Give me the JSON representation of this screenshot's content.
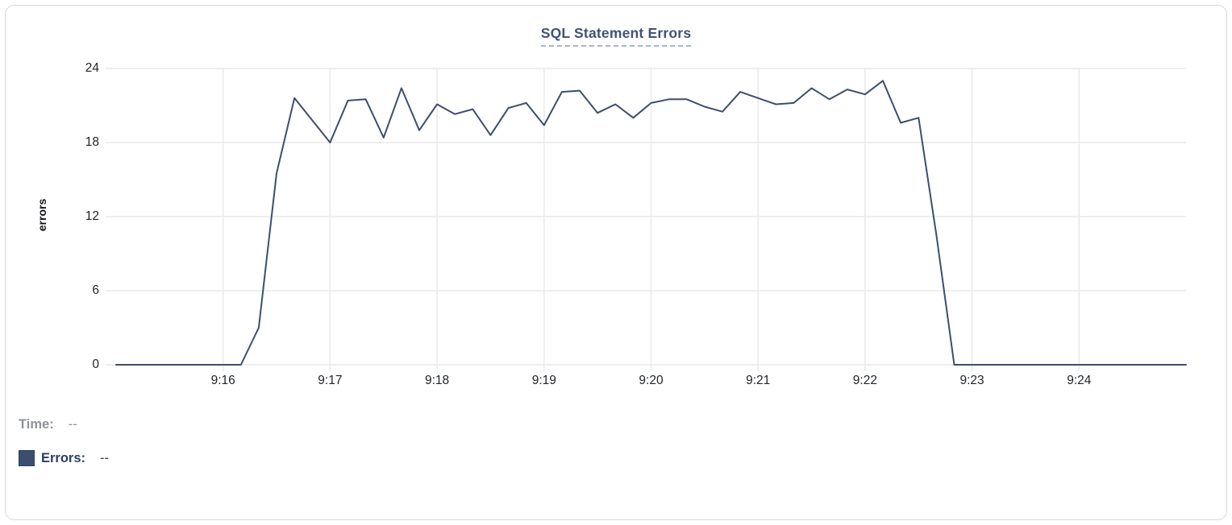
{
  "card": {
    "title": "SQL Statement Errors"
  },
  "chart_data": {
    "type": "line",
    "title": "SQL Statement Errors",
    "xlabel": "",
    "ylabel": "errors",
    "ylim": [
      0,
      24
    ],
    "yticks": [
      0,
      6,
      12,
      18,
      24
    ],
    "xticks": [
      "9:16",
      "9:17",
      "9:18",
      "9:19",
      "9:20",
      "9:21",
      "9:22",
      "9:23",
      "9:24"
    ],
    "grid": true,
    "legend_position": "bottom-left",
    "series": [
      {
        "name": "Errors",
        "start_time": "9:15:00",
        "end_time": "9:25:00",
        "step_seconds": 10,
        "values": [
          0,
          0,
          0,
          0,
          0,
          0,
          0,
          0,
          3,
          15.5,
          21.6,
          19.8,
          18,
          21.4,
          21.5,
          18.4,
          22.4,
          19,
          21.1,
          20.3,
          20.7,
          18.6,
          20.8,
          21.2,
          19.4,
          22.1,
          22.2,
          20.4,
          21.1,
          20,
          21.2,
          21.5,
          21.5,
          20.9,
          20.5,
          22.1,
          21.6,
          21.1,
          21.2,
          22.4,
          21.5,
          22.3,
          21.9,
          23,
          19.6,
          20,
          10.5,
          0,
          0,
          0,
          0,
          0,
          0,
          0,
          0,
          0,
          0,
          0,
          0,
          0,
          0
        ]
      }
    ]
  },
  "legend": {
    "time_label": "Time:",
    "time_value": "--",
    "errors_label": "Errors:",
    "errors_value": "--"
  },
  "colors": {
    "line": "#3c4e6d",
    "swatch": "#3c4e6d",
    "grid": "#e9e9e9",
    "title_text": "#3f5377",
    "tick_text": "#1f2328",
    "time_text": "#8f9297",
    "errors_text": "#2c3f63"
  }
}
